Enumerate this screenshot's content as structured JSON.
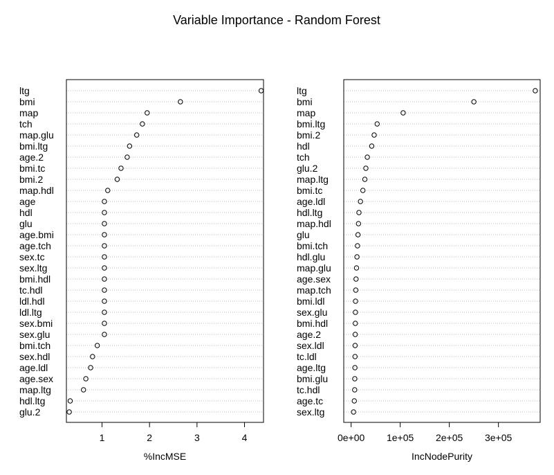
{
  "title": "Variable Importance - Random Forest",
  "chart_data": [
    {
      "type": "dotchart",
      "xlabel": "%IncMSE",
      "ylabel": "",
      "xlim": [
        0.25,
        4.4
      ],
      "xticks": [
        1,
        2,
        3,
        4
      ],
      "xtick_labels": [
        "1",
        "2",
        "3",
        "4"
      ],
      "grid": "dotted horizontal",
      "categories": [
        "ltg",
        "bmi",
        "map",
        "tch",
        "map.glu",
        "bmi.ltg",
        "age.2",
        "bmi.tc",
        "bmi.2",
        "map.hdl",
        "age",
        "hdl",
        "glu",
        "age.bmi",
        "age.tch",
        "sex.tc",
        "sex.ltg",
        "bmi.hdl",
        "tc.hdl",
        "ldl.hdl",
        "ldl.ltg",
        "sex.bmi",
        "sex.glu",
        "bmi.tch",
        "sex.hdl",
        "age.ldl",
        "age.sex",
        "map.ltg",
        "hdl.ltg",
        "glu.2"
      ],
      "values": [
        4.35,
        2.65,
        1.95,
        1.85,
        1.73,
        1.58,
        1.53,
        1.4,
        1.32,
        1.12,
        1.05,
        1.05,
        1.05,
        1.05,
        1.05,
        1.05,
        1.05,
        1.05,
        1.05,
        1.05,
        1.05,
        1.05,
        1.05,
        0.9,
        0.8,
        0.76,
        0.66,
        0.61,
        0.33,
        0.31
      ]
    },
    {
      "type": "dotchart",
      "xlabel": "IncNodePurity",
      "ylabel": "",
      "xlim": [
        -15000,
        385000
      ],
      "xticks": [
        0,
        100000,
        200000,
        300000
      ],
      "xtick_labels": [
        "0e+00",
        "1e+05",
        "2e+05",
        "3e+05"
      ],
      "grid": "dotted horizontal",
      "categories": [
        "ltg",
        "bmi",
        "map",
        "bmi.ltg",
        "bmi.2",
        "hdl",
        "tch",
        "glu.2",
        "map.ltg",
        "bmi.tc",
        "age.ldl",
        "hdl.ltg",
        "map.hdl",
        "glu",
        "bmi.tch",
        "hdl.glu",
        "map.glu",
        "age.sex",
        "map.tch",
        "bmi.ldl",
        "sex.glu",
        "bmi.hdl",
        "age.2",
        "sex.ldl",
        "tc.ldl",
        "age.ltg",
        "bmi.glu",
        "tc.hdl",
        "age.tc",
        "sex.ltg"
      ],
      "values": [
        375000,
        250000,
        106000,
        53000,
        47000,
        42000,
        33000,
        30000,
        28000,
        24000,
        19000,
        16000,
        15000,
        14000,
        13000,
        12000,
        11000,
        10000,
        9500,
        9000,
        8800,
        8600,
        8400,
        8200,
        8000,
        7800,
        7500,
        7300,
        6500,
        5000
      ]
    }
  ]
}
